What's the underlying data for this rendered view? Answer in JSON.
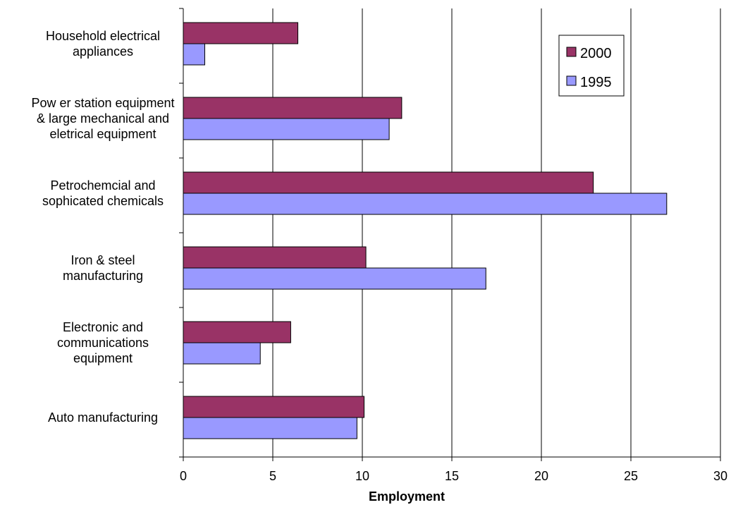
{
  "chart_data": {
    "type": "bar",
    "orientation": "horizontal",
    "categories": [
      [
        "Household electrical",
        "appliances"
      ],
      [
        "Pow er station equipment",
        "& large mechanical and",
        "eletrical equipment"
      ],
      [
        "Petrochemcial and",
        "sophicated chemicals"
      ],
      [
        "Iron & steel",
        "manufacturing"
      ],
      [
        "Electronic and",
        "communications",
        "equipment"
      ],
      [
        "Auto manufacturing"
      ]
    ],
    "series": [
      {
        "name": "2000",
        "color": "#993366",
        "values": [
          6.4,
          12.2,
          22.9,
          10.2,
          6.0,
          10.1
        ]
      },
      {
        "name": "1995",
        "color": "#9999FF",
        "values": [
          1.2,
          11.5,
          27.0,
          16.9,
          4.3,
          9.7
        ]
      }
    ],
    "xlabel": "Employment",
    "xlim": [
      0,
      30
    ],
    "xticks": [
      "0",
      "5",
      "10",
      "15",
      "20",
      "25",
      "30"
    ],
    "grid": true,
    "legend_position": "top-right"
  }
}
